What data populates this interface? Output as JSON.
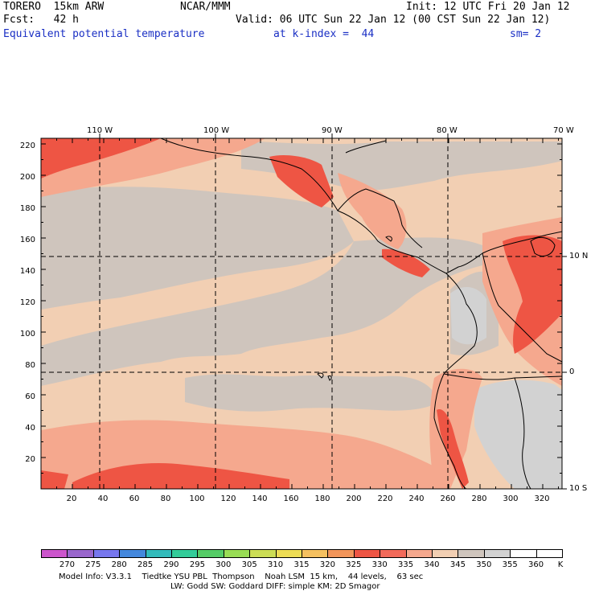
{
  "header": {
    "model": "TORERO  15km ARW",
    "center": "NCAR/MMM",
    "init": "Init: 12 UTC Fri 20 Jan 12",
    "fcst": "Fcst:   42 h",
    "valid": "Valid: 06 UTC Sun 22 Jan 12 (00 CST Sun 22 Jan 12)",
    "field": "Equivalent potential temperature",
    "level": "at k-index =  44",
    "smoothing": "sm= 2"
  },
  "map": {
    "lon_labels": [
      "110 W",
      "100 W",
      "90 W",
      "80 W",
      "70 W"
    ],
    "lat_labels": [
      "10 N",
      "0",
      "10 S"
    ],
    "grid_y_labels": [
      "220",
      "200",
      "180",
      "160",
      "140",
      "120",
      "100",
      "80",
      "60",
      "40",
      "20"
    ],
    "grid_x_labels": [
      "20",
      "40",
      "60",
      "80",
      "100",
      "120",
      "140",
      "160",
      "180",
      "200",
      "220",
      "240",
      "260",
      "280",
      "300",
      "320"
    ]
  },
  "colorbar": {
    "unit": "K",
    "labels": [
      "270",
      "275",
      "280",
      "285",
      "290",
      "295",
      "300",
      "305",
      "310",
      "315",
      "320",
      "325",
      "330",
      "335",
      "340",
      "345",
      "350",
      "355",
      "360"
    ],
    "colors": [
      "#cc55cc",
      "#9966cc",
      "#7777ee",
      "#4488dd",
      "#33bbbb",
      "#33cc99",
      "#55cc66",
      "#99dd55",
      "#ccdd55",
      "#eedd55",
      "#f5c060",
      "#f2955a",
      "#ee5544",
      "#f26a5a",
      "#f5a88e",
      "#f2cfb3",
      "#cfc5bd",
      "#d2d2d2",
      "#ffffff",
      "#ffffff"
    ]
  },
  "footer": {
    "line1": "Model Info: V3.3.1    Tiedtke YSU PBL  Thompson    Noah LSM  15 km,    44 levels,    63 sec",
    "line2": "LW: Godd SW: Goddard DIFF: simple KM: 2D Smagor"
  }
}
